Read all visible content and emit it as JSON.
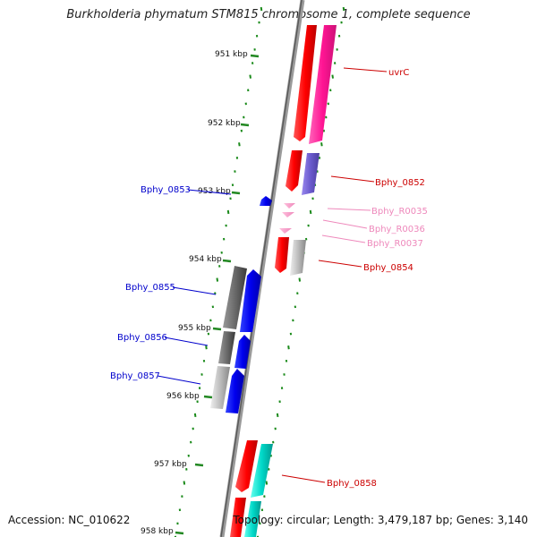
{
  "title": "Burkholderia phymatum STM815 chromosome 1, complete sequence",
  "footer": {
    "accession": "Accession: NC_010622",
    "summary": "Topology: circular; Length: 3,479,187 bp; Genes: 3,140"
  },
  "scale_labels": [
    "951 kbp",
    "952 kbp",
    "953 kbp",
    "954 kbp",
    "955 kbp",
    "956 kbp",
    "957 kbp",
    "958 kbp"
  ],
  "genes": [
    {
      "name": "uvrC",
      "color": "#cc0000"
    },
    {
      "name": "Bphy_0852",
      "color": "#cc0000"
    },
    {
      "name": "Bphy_R0035",
      "color": "#ee88bb"
    },
    {
      "name": "Bphy_R0036",
      "color": "#ee88bb"
    },
    {
      "name": "Bphy_R0037",
      "color": "#ee88bb"
    },
    {
      "name": "Bphy_0854",
      "color": "#cc0000"
    },
    {
      "name": "Bphy_0858",
      "color": "#cc0000"
    },
    {
      "name": "Bphy_0853",
      "color": "#0000cc"
    },
    {
      "name": "Bphy_0855",
      "color": "#0000cc"
    },
    {
      "name": "Bphy_0856",
      "color": "#0000cc"
    },
    {
      "name": "Bphy_0857",
      "color": "#0000cc"
    }
  ]
}
